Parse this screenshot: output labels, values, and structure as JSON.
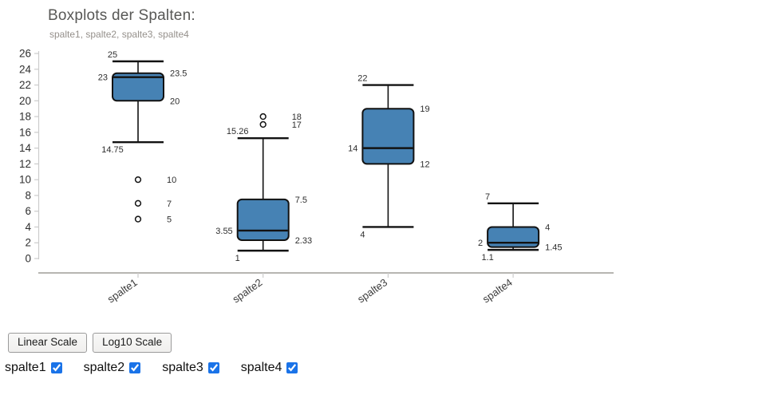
{
  "chart_data": {
    "type": "boxplot",
    "title": "Boxplots der Spalten:",
    "subtitle": "spalte1, spalte2, spalte3, spalte4",
    "categories": [
      "spalte1",
      "spalte2",
      "spalte3",
      "spalte4"
    ],
    "series": [
      {
        "name": "spalte1",
        "whisker_low": 14.75,
        "q1": 20,
        "median": 23,
        "q3": 23.5,
        "whisker_high": 25,
        "outliers": [
          10,
          7,
          5
        ]
      },
      {
        "name": "spalte2",
        "whisker_low": 1,
        "q1": 2.33,
        "median": 3.55,
        "q3": 7.5,
        "whisker_high": 15.26,
        "outliers": [
          18,
          17
        ]
      },
      {
        "name": "spalte3",
        "whisker_low": 4,
        "q1": 12,
        "median": 14,
        "q3": 19,
        "whisker_high": 22,
        "outliers": []
      },
      {
        "name": "spalte4",
        "whisker_low": 1.1,
        "q1": 1.45,
        "median": 2,
        "q3": 4,
        "whisker_high": 7,
        "outliers": []
      }
    ],
    "ylim": [
      0,
      26
    ],
    "yticks": [
      0,
      2,
      4,
      6,
      8,
      10,
      12,
      14,
      16,
      18,
      20,
      22,
      24,
      26
    ],
    "xlabel": "",
    "ylabel": "",
    "grid": false,
    "legend": "none"
  },
  "controls": {
    "linear_label": "Linear Scale",
    "log10_label": "Log10 Scale"
  },
  "checkboxes": [
    {
      "label": "spalte1",
      "checked": true
    },
    {
      "label": "spalte2",
      "checked": true
    },
    {
      "label": "spalte3",
      "checked": true
    },
    {
      "label": "spalte4",
      "checked": true
    }
  ],
  "colors": {
    "box_fill": "#4682b4",
    "box_stroke": "#121212",
    "axis": "#cccccc",
    "x_axis_line": "#b7b5b1",
    "tick_text": "#2f2f2f",
    "annotation_text": "#2e2e2e",
    "category_text": "#3c3c3c",
    "checkbox_accent": "#1a73e8"
  }
}
